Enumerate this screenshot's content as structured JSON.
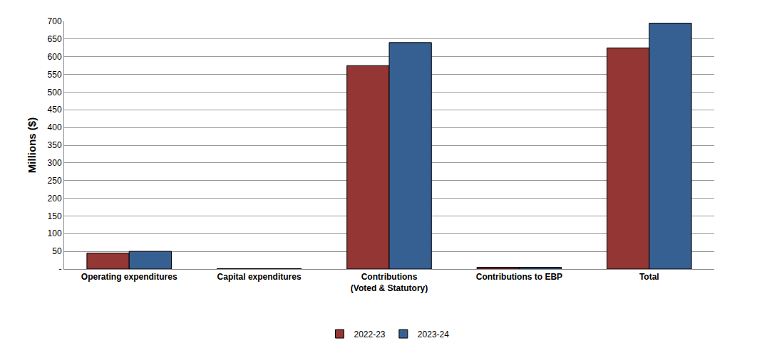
{
  "chart_data": {
    "type": "bar",
    "categories": [
      "Operating expenditures",
      "Capital expenditures",
      "Contributions (Voted & Statutory)",
      "Contributions to EBP",
      "Total"
    ],
    "series": [
      {
        "name": "2022-23",
        "color": "#943634",
        "values": [
          45,
          1,
          575,
          5,
          625
        ]
      },
      {
        "name": "2023-24",
        "color": "#376092",
        "values": [
          50,
          1,
          640,
          5,
          695
        ]
      }
    ],
    "y_label": "Millions ($)",
    "ylim": [
      0,
      700
    ],
    "yticks": [
      {
        "value": 0,
        "label": "-"
      },
      50,
      100,
      150,
      200,
      250,
      300,
      350,
      400,
      450,
      500,
      550,
      600,
      650,
      700
    ],
    "grid": true,
    "legend": "bottom"
  }
}
